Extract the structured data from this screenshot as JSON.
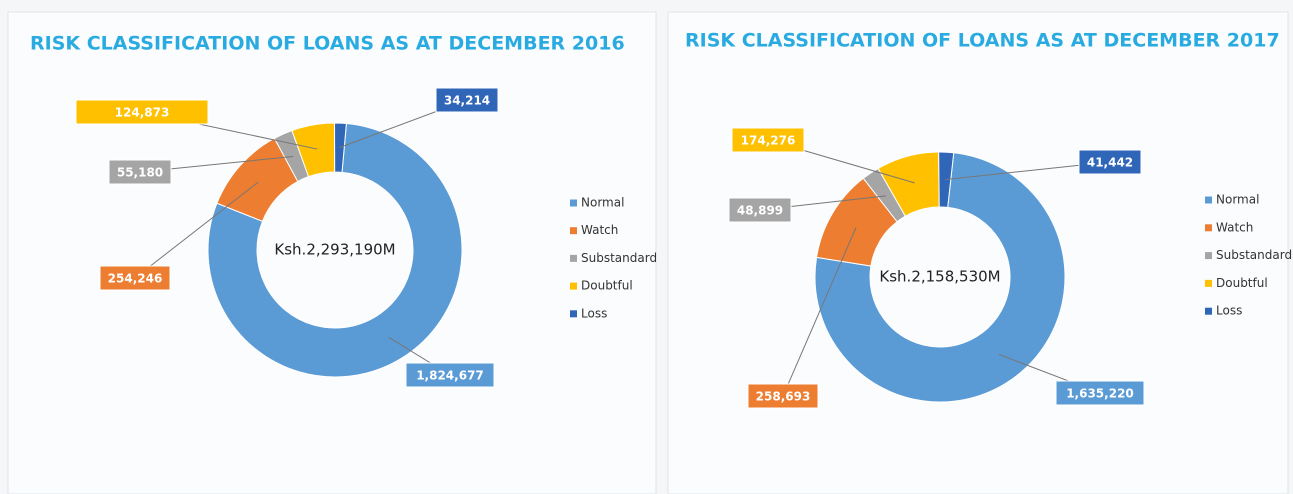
{
  "chart_data": [
    {
      "type": "donut",
      "title": "RISK CLASSIFICATION OF LOANS AS AT DECEMBER 2016",
      "center_text": "Ksh.2,293,190M",
      "categories": [
        "Normal",
        "Watch",
        "Substandard",
        "Doubtful",
        "Loss"
      ],
      "values": [
        1824677,
        254246,
        55180,
        124873,
        34214
      ],
      "value_labels": [
        "1,824,677",
        "254,246",
        "55,180",
        "124,873",
        "34,214"
      ],
      "colors": [
        "#5b9bd5",
        "#ed7d31",
        "#a5a5a5",
        "#ffc000",
        "#2f66b8"
      ],
      "legend": "right"
    },
    {
      "type": "donut",
      "title": "RISK CLASSIFICATION OF LOANS AS AT DECEMBER 2017",
      "center_text": "Ksh.2,158,530M",
      "categories": [
        "Normal",
        "Watch",
        "Substandard",
        "Doubtful",
        "Loss"
      ],
      "values": [
        1635220,
        258693,
        48899,
        174276,
        41442
      ],
      "value_labels": [
        "1,635,220",
        "258,693",
        "48,899",
        "174,276",
        "41,442"
      ],
      "colors": [
        "#5b9bd5",
        "#ed7d31",
        "#a5a5a5",
        "#ffc000",
        "#2f66b8"
      ],
      "legend": "right"
    }
  ]
}
